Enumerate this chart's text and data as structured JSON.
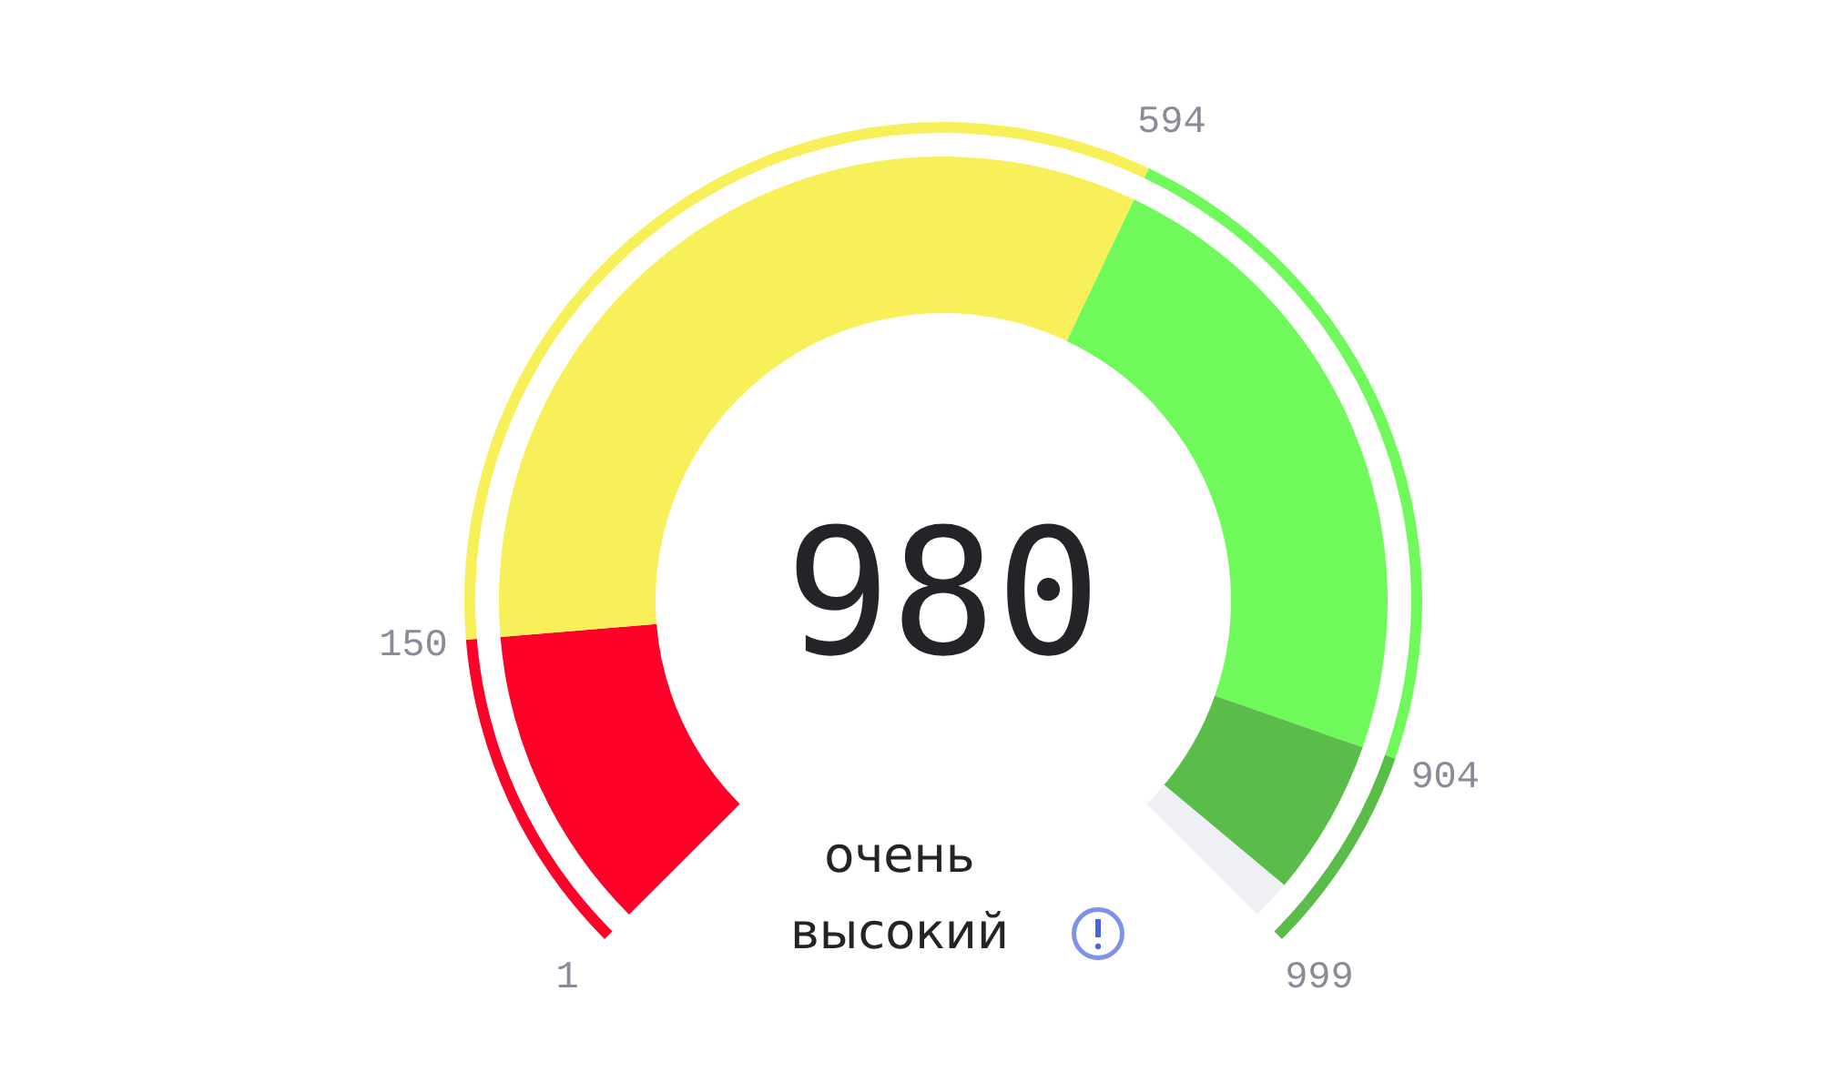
{
  "chart_data": {
    "type": "donut",
    "categories": [
      null,
      null,
      null,
      null,
      null
    ],
    "series": [
      {
        "values": [
          14.93,
          44.49,
          31.06,
          7.62,
          1.9
        ],
        "colors": [
          "#ff0029",
          "#f7f058",
          "#6ff95a",
          "#5abd4a",
          "#eef0f5"
        ]
      },
      {
        "values": [
          14.93,
          44.49,
          31.06,
          7.62,
          1.9
        ],
        "colors": [
          "#ff0029",
          "#f7f058",
          "#6ff95a",
          "#5abd4a",
          "#5abd4a"
        ]
      }
    ],
    "annotations": [
      "1",
      "150",
      "594",
      "904",
      "999",
      "980",
      "очень\nвысокий"
    ]
  }
}
